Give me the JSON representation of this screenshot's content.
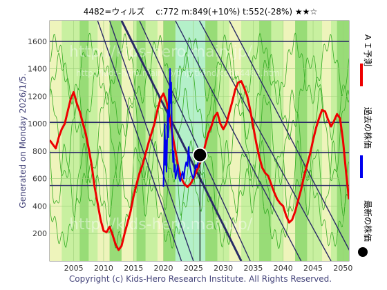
{
  "header": {
    "title": "4482=ウィルズ　 c:772  m:849(+10%)  t:552(-28%)  ★★☆"
  },
  "side_label": "Generated on Monday 2026/1/5.",
  "watermarks": [
    "http://kids-hero.main.jp/",
    "http://kids-hero.main.jp/php/trend/code4482.html",
    "http://kids-hero.main.jp/"
  ],
  "copyright": "Copyright (c) Kids-Hero Research Institute. All Rights Reserved.",
  "legend": {
    "ai": "ＡＩ予測",
    "past": "過去の株価",
    "latest": "最新の株価"
  },
  "colors": {
    "ai": "#ee0000",
    "past": "#0000ee",
    "latest": "#000000",
    "band_light": "#c8f0a0",
    "band_mid": "#8fd870",
    "band_cyan": "#b0f0d0",
    "band_yellow": "#f5f5c0",
    "hline": "#2a2a66",
    "diag": "#2a2a66",
    "green_line": "#33aa22"
  },
  "chart_data": {
    "type": "line",
    "title": "4482=ウィルズ　 c:772  m:849(+10%)  t:552(-28%)  ★★☆",
    "xlabel": "",
    "ylabel": "",
    "xlim": [
      2001,
      2051
    ],
    "ylim": [
      0,
      1750
    ],
    "x_ticks": [
      2005,
      2010,
      2015,
      2020,
      2025,
      2030,
      2035,
      2040,
      2045,
      2050
    ],
    "y_ticks": [
      200,
      400,
      600,
      800,
      1000,
      1200,
      1400,
      1600
    ],
    "grid": true,
    "current_price": 772,
    "current_year": 2026.1,
    "horizontal_lines": [
      1600,
      1010,
      790,
      550
    ],
    "series": [
      {
        "name": "ＡＩ予測",
        "color": "#ee0000",
        "x": [
          2001,
          2001.5,
          2002,
          2002.5,
          2003,
          2003.5,
          2004,
          2004.5,
          2005,
          2005.5,
          2006,
          2006.5,
          2007,
          2007.5,
          2008,
          2008.5,
          2009,
          2009.5,
          2010,
          2010.5,
          2011,
          2011.5,
          2012,
          2012.5,
          2013,
          2013.5,
          2014,
          2014.5,
          2015,
          2015.5,
          2016,
          2016.5,
          2017,
          2017.5,
          2018,
          2018.5,
          2019,
          2019.5,
          2020,
          2020.5,
          2021,
          2021.5,
          2022,
          2022.5,
          2023,
          2023.5,
          2024,
          2024.5,
          2025,
          2025.5,
          2026,
          2026.5,
          2027,
          2027.5,
          2028,
          2028.5,
          2029,
          2029.5,
          2030,
          2030.5,
          2031,
          2031.5,
          2032,
          2032.5,
          2033,
          2033.5,
          2034,
          2034.5,
          2035,
          2035.5,
          2036,
          2036.5,
          2037,
          2037.5,
          2038,
          2038.5,
          2039,
          2039.5,
          2040,
          2040.5,
          2041,
          2041.5,
          2042,
          2042.5,
          2043,
          2043.5,
          2044,
          2044.5,
          2045,
          2045.5,
          2046,
          2046.5,
          2047,
          2047.5,
          2048,
          2048.5,
          2049,
          2049.5,
          2050,
          2050.5,
          2051
        ],
        "values": [
          880,
          850,
          820,
          900,
          960,
          1000,
          1090,
          1180,
          1230,
          1150,
          1090,
          1010,
          930,
          820,
          700,
          540,
          420,
          300,
          220,
          210,
          250,
          190,
          120,
          80,
          110,
          200,
          280,
          360,
          470,
          560,
          640,
          700,
          780,
          860,
          930,
          1000,
          1100,
          1180,
          1220,
          1160,
          1060,
          920,
          800,
          680,
          600,
          560,
          540,
          560,
          600,
          650,
          700,
          760,
          850,
          930,
          980,
          1050,
          1080,
          1000,
          960,
          1000,
          1080,
          1160,
          1250,
          1300,
          1310,
          1260,
          1200,
          1100,
          980,
          860,
          760,
          680,
          640,
          620,
          560,
          500,
          450,
          420,
          400,
          330,
          280,
          300,
          360,
          440,
          520,
          620,
          700,
          780,
          880,
          970,
          1040,
          1100,
          1090,
          1030,
          980,
          1020,
          1070,
          1040,
          880,
          650,
          450
        ]
      },
      {
        "name": "過去の株価",
        "color": "#0000ee",
        "x": [
          2020,
          2020.1,
          2020.2,
          2020.3,
          2020.4,
          2020.5,
          2020.6,
          2020.7,
          2020.8,
          2020.9,
          2021,
          2021.1,
          2021.2,
          2021.3,
          2021.4,
          2021.5,
          2021.6,
          2021.7,
          2021.8,
          2021.9,
          2022,
          2022.2,
          2022.4,
          2022.6,
          2022.8,
          2023,
          2023.2,
          2023.4,
          2023.6,
          2023.8,
          2024,
          2024.2,
          2024.4,
          2024.6,
          2024.8,
          2025,
          2025.2,
          2025.4,
          2025.6,
          2025.8,
          2026,
          2026.1
        ],
        "values": [
          540,
          760,
          1000,
          700,
          880,
          650,
          820,
          1100,
          900,
          1250,
          1050,
          1400,
          1150,
          1300,
          980,
          850,
          720,
          800,
          650,
          700,
          600,
          640,
          700,
          610,
          580,
          620,
          650,
          600,
          680,
          720,
          690,
          830,
          700,
          650,
          620,
          600,
          640,
          700,
          680,
          720,
          760,
          772
        ]
      }
    ]
  }
}
